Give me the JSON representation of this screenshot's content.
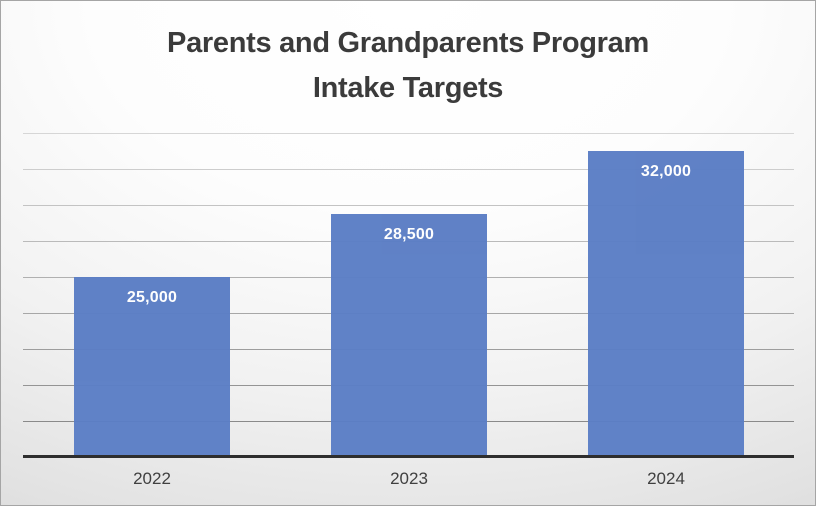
{
  "chart_data": {
    "type": "bar",
    "title": "Parents and Grandparents Program\nIntake Targets",
    "categories": [
      "2022",
      "2023",
      "2024"
    ],
    "values": [
      25000,
      28500,
      32000
    ],
    "data_labels": [
      "25,000",
      "28,500",
      "32,000"
    ],
    "xlabel": "",
    "ylabel": "",
    "ylim": [
      15000,
      33000
    ],
    "gridline_step": 2000,
    "grid": true,
    "legend": false,
    "colors": {
      "bar": "#5b7ec5",
      "title_text": "#3b3b3b",
      "data_label_text": "#ffffff",
      "category_text": "#404040",
      "axis_line": "#2e2e2e",
      "gridline_top": "#d6d6d6",
      "gridline_bottom": "#8a8a8a"
    }
  }
}
